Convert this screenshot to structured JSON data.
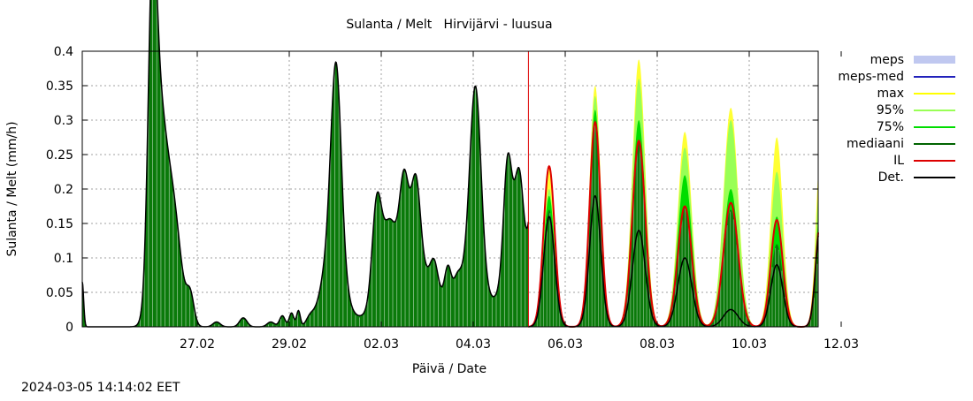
{
  "chart_data": {
    "type": "area",
    "title": "Sulanta / Melt   Hirvijärvi - luusua",
    "xlabel": "Päivä / Date",
    "ylabel": "Sulanta / Melt (mm/h)",
    "ylim": [
      0,
      0.4
    ],
    "yticks": [
      "0",
      "0.05",
      "0.1",
      "0.15",
      "0.2",
      "0.25",
      "0.3",
      "0.35",
      "0.4"
    ],
    "xlim_days": [
      -1.5,
      14.5
    ],
    "xticks": [
      {
        "day": 1,
        "label": "27.02"
      },
      {
        "day": 3,
        "label": "29.02"
      },
      {
        "day": 5,
        "label": "02.03"
      },
      {
        "day": 7,
        "label": "04.03"
      },
      {
        "day": 9,
        "label": "06.03"
      },
      {
        "day": 11,
        "label": "08.03"
      },
      {
        "day": 13,
        "label": "10.03"
      },
      {
        "day": 15,
        "label": "12.03"
      }
    ],
    "x_unit": "days from 26.02 00:00",
    "grid": true,
    "legend_position": "right",
    "forecast_start_day": 8.2,
    "legend": [
      {
        "name": "meps",
        "color": "#c0c8f0",
        "style": "box"
      },
      {
        "name": "meps-med",
        "color": "#2222bb",
        "style": "line"
      },
      {
        "name": "max",
        "color": "#ffff00",
        "style": "line"
      },
      {
        "name": "95%",
        "color": "#99ff55",
        "style": "line"
      },
      {
        "name": "75%",
        "color": "#00dd00",
        "style": "line"
      },
      {
        "name": "mediaani",
        "color": "#006400",
        "style": "line"
      },
      {
        "name": "IL",
        "color": "#dd0000",
        "style": "line"
      },
      {
        "name": "Det.",
        "color": "#000000",
        "style": "line"
      }
    ],
    "observed_peaks": [
      {
        "day": -1.5,
        "height": 0.065,
        "width": 0.03
      },
      {
        "day": 0.02,
        "height": 0.367,
        "width": 0.09
      },
      {
        "day": 0.15,
        "height": 0.27,
        "width": 0.15
      },
      {
        "day": 0.45,
        "height": 0.18,
        "width": 0.18
      },
      {
        "day": 0.85,
        "height": 0.04,
        "width": 0.08
      },
      {
        "day": 1.42,
        "height": 0.007,
        "width": 0.08
      },
      {
        "day": 2.0,
        "height": 0.013,
        "width": 0.08
      },
      {
        "day": 2.6,
        "height": 0.007,
        "width": 0.08
      },
      {
        "day": 2.85,
        "height": 0.016,
        "width": 0.06
      },
      {
        "day": 3.05,
        "height": 0.02,
        "width": 0.05
      },
      {
        "day": 3.2,
        "height": 0.023,
        "width": 0.04
      },
      {
        "day": 3.45,
        "height": 0.01,
        "width": 0.08
      },
      {
        "day": 4.02,
        "height": 0.268,
        "width": 0.11
      },
      {
        "day": 3.95,
        "height": 0.12,
        "width": 0.22
      },
      {
        "day": 4.9,
        "height": 0.138,
        "width": 0.1
      },
      {
        "day": 5.18,
        "height": 0.108,
        "width": 0.16
      },
      {
        "day": 5.5,
        "height": 0.147,
        "width": 0.1
      },
      {
        "day": 5.75,
        "height": 0.14,
        "width": 0.1
      },
      {
        "day": 5.45,
        "height": 0.05,
        "width": 0.55
      },
      {
        "day": 6.0,
        "height": 0.045,
        "width": 0.3
      },
      {
        "day": 6.15,
        "height": 0.035,
        "width": 0.08
      },
      {
        "day": 6.45,
        "height": 0.048,
        "width": 0.07
      },
      {
        "day": 6.65,
        "height": 0.023,
        "width": 0.08
      },
      {
        "day": 7.05,
        "height": 0.272,
        "width": 0.12
      },
      {
        "day": 6.95,
        "height": 0.08,
        "width": 0.28
      },
      {
        "day": 7.75,
        "height": 0.172,
        "width": 0.09
      },
      {
        "day": 8.0,
        "height": 0.15,
        "width": 0.1
      },
      {
        "day": 8.3,
        "height": 0.155,
        "width": 0.09
      },
      {
        "day": 7.9,
        "height": 0.08,
        "width": 0.3
      }
    ],
    "forecast_peaks": [
      {
        "day": 8.65,
        "max": 0.23,
        "p95": 0.2,
        "p75": 0.19,
        "median": 0.17,
        "IL": 0.233,
        "Det": 0.16,
        "width": 0.12
      },
      {
        "day": 9.65,
        "max": 0.35,
        "p95": 0.335,
        "p75": 0.315,
        "median": 0.3,
        "IL": 0.297,
        "Det": 0.19,
        "width": 0.12
      },
      {
        "day": 10.6,
        "max": 0.388,
        "p95": 0.36,
        "p75": 0.3,
        "median": 0.27,
        "IL": 0.27,
        "Det": 0.14,
        "width": 0.14
      },
      {
        "day": 11.6,
        "max": 0.283,
        "p95": 0.26,
        "p75": 0.22,
        "median": 0.175,
        "IL": 0.175,
        "Det": 0.1,
        "width": 0.15
      },
      {
        "day": 12.6,
        "max": 0.318,
        "p95": 0.3,
        "p75": 0.2,
        "median": 0.17,
        "IL": 0.18,
        "Det": 0.025,
        "width": 0.16
      },
      {
        "day": 13.6,
        "max": 0.275,
        "p95": 0.225,
        "p75": 0.16,
        "median": 0.12,
        "IL": 0.155,
        "Det": 0.09,
        "width": 0.13
      },
      {
        "day": 14.55,
        "max": 0.255,
        "p95": 0.22,
        "p75": 0.175,
        "median": 0.12,
        "IL": 0.155,
        "Det": 0.15,
        "width": 0.1
      }
    ]
  },
  "footer": {
    "timestamp": "2024-03-05 14:14:02 EET"
  }
}
